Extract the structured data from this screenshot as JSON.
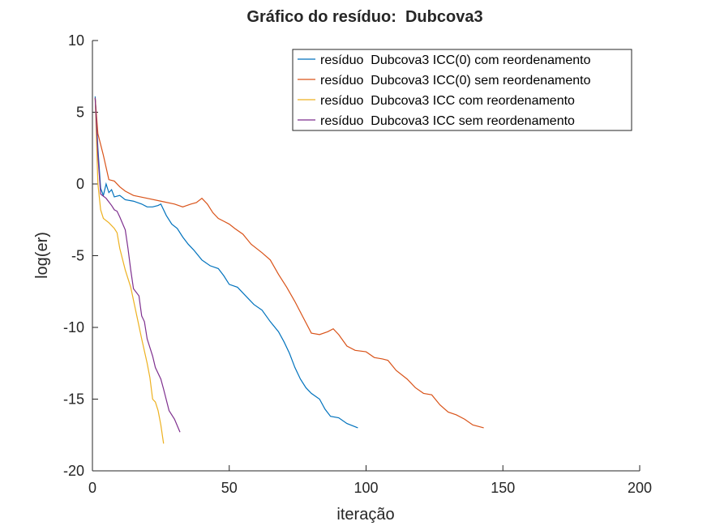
{
  "chart_data": {
    "type": "line",
    "title": "Gráfico do resíduo:  Dubcova3",
    "x_label": "iteração",
    "y_label": "log(er)",
    "xlim": [
      0,
      200
    ],
    "xticks": [
      0,
      50,
      100,
      150,
      200
    ],
    "ylim": [
      -20,
      10
    ],
    "yticks": [
      -20,
      -15,
      -10,
      -5,
      0,
      5,
      10
    ],
    "legend": "top-right",
    "series": [
      {
        "name": "resíduo  Dubcova3 ICC(0) com reordenamento",
        "color": "#0072bd",
        "x": [
          1,
          2,
          3,
          4,
          5,
          6,
          7,
          8,
          10,
          12,
          15,
          18,
          20,
          22,
          24,
          25,
          27,
          29,
          31,
          33,
          35,
          37,
          40,
          43,
          46,
          48,
          50,
          53,
          56,
          59,
          62,
          65,
          68,
          70,
          72,
          74,
          76,
          78,
          80,
          83,
          85,
          87,
          90,
          93,
          97
        ],
        "values": [
          6.1,
          2.5,
          -0.3,
          -0.8,
          0,
          -0.6,
          -0.4,
          -0.9,
          -0.8,
          -1.1,
          -1.2,
          -1.4,
          -1.6,
          -1.6,
          -1.5,
          -1.4,
          -2.2,
          -2.8,
          -3.1,
          -3.7,
          -4.2,
          -4.6,
          -5.3,
          -5.7,
          -5.9,
          -6.4,
          -7.0,
          -7.2,
          -7.8,
          -8.4,
          -8.8,
          -9.6,
          -10.3,
          -11.0,
          -11.8,
          -12.8,
          -13.6,
          -14.2,
          -14.6,
          -15.0,
          -15.7,
          -16.2,
          -16.3,
          -16.7,
          -17.0
        ]
      },
      {
        "name": "resíduo  Dubcova3 ICC(0) sem reordenamento",
        "color": "#d95319",
        "x": [
          1,
          2,
          4,
          6,
          8,
          10,
          12,
          15,
          20,
          25,
          30,
          33,
          36,
          38,
          40,
          42,
          44,
          46,
          48,
          50,
          52,
          55,
          58,
          62,
          65,
          68,
          71,
          74,
          77,
          80,
          83,
          86,
          88,
          90,
          93,
          96,
          100,
          103,
          106,
          108,
          111,
          115,
          118,
          121,
          124,
          127,
          130,
          133,
          136,
          139,
          143
        ],
        "values": [
          6,
          3.5,
          2,
          0.3,
          0.2,
          -0.2,
          -0.5,
          -0.8,
          -1.0,
          -1.2,
          -1.4,
          -1.6,
          -1.4,
          -1.3,
          -1.0,
          -1.4,
          -2.0,
          -2.4,
          -2.6,
          -2.8,
          -3.1,
          -3.5,
          -4.2,
          -4.8,
          -5.3,
          -6.3,
          -7.2,
          -8.2,
          -9.3,
          -10.4,
          -10.5,
          -10.3,
          -10.1,
          -10.5,
          -11.3,
          -11.6,
          -11.7,
          -12.1,
          -12.2,
          -12.3,
          -13.0,
          -13.6,
          -14.2,
          -14.6,
          -14.7,
          -15.4,
          -15.9,
          -16.1,
          -16.4,
          -16.8,
          -17.0
        ]
      },
      {
        "name": "resíduo  Dubcova3 ICC com reordenamento",
        "color": "#edb120",
        "x": [
          1,
          2,
          3,
          4,
          6,
          8,
          9,
          10,
          12,
          14,
          16,
          18,
          20,
          21,
          22,
          23,
          24,
          25,
          26
        ],
        "values": [
          6,
          0,
          -1.8,
          -2.4,
          -2.7,
          -3.1,
          -3.4,
          -4.5,
          -6.0,
          -7.2,
          -9.0,
          -10.8,
          -12.5,
          -13.5,
          -15,
          -15.2,
          -15.8,
          -16.8,
          -18.1
        ]
      },
      {
        "name": "resíduo  Dubcova3 ICC sem reordenamento",
        "color": "#7e2f8e",
        "x": [
          1,
          2,
          3,
          5,
          7,
          8,
          9,
          10,
          12,
          13,
          14,
          15,
          17,
          18,
          19,
          20,
          22,
          23,
          25,
          26,
          28,
          30,
          32
        ],
        "values": [
          6,
          2,
          -0.7,
          -1.0,
          -1.5,
          -1.8,
          -1.9,
          -2.3,
          -3.2,
          -4.5,
          -6.0,
          -7.3,
          -7.8,
          -9.2,
          -9.6,
          -10.8,
          -12.0,
          -12.8,
          -13.6,
          -14.3,
          -15.8,
          -16.4,
          -17.3
        ]
      }
    ]
  }
}
